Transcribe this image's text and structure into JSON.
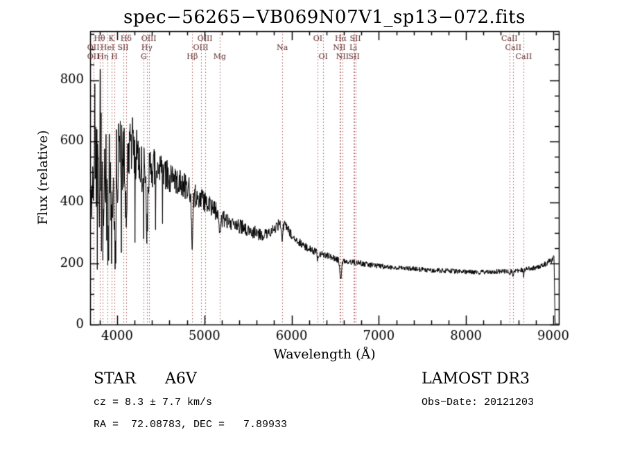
{
  "title": "spec−56265−VB069N07V1_sp13−072.fits",
  "axes": {
    "x_label": "Wavelength (Å)",
    "y_label": "Flux (relative)",
    "x_ticks": [
      4000,
      5000,
      6000,
      7000,
      8000,
      9000
    ],
    "y_ticks": [
      0,
      200,
      400,
      600,
      800
    ]
  },
  "annotations": {
    "class_label": "STAR      A6V",
    "cz": "cz = 8.3 ± 7.7 km/s",
    "radec": "RA =  72.08783, DEC =   7.89933",
    "survey": "LAMOST DR3",
    "obs_date": "Obs−Date: 20121203"
  },
  "colors": {
    "background": "#ffffff",
    "spectrum": "#000000",
    "axis": "#000000",
    "line_marker": "#a85454",
    "line_label": "#5f2727"
  },
  "chart_data": {
    "type": "line",
    "title": "spec−56265−VB069N07V1_sp13−072.fits",
    "xlabel": "Wavelength (Å)",
    "ylabel": "Flux (relative)",
    "xlim": [
      3690,
      9064
    ],
    "ylim": [
      0,
      960
    ],
    "x_ticks": [
      4000,
      5000,
      6000,
      7000,
      8000,
      9000
    ],
    "y_ticks": [
      0,
      200,
      400,
      600,
      800
    ],
    "x_minor_step": 200,
    "y_minor_step": 50,
    "grid": false,
    "noise_seed": 20121203,
    "spectral_lines": [
      {
        "label": "Hθ",
        "wavelength": 3798,
        "row": 1
      },
      {
        "label": "K",
        "wavelength": 3934,
        "row": 1
      },
      {
        "label": "Hδ",
        "wavelength": 4102,
        "row": 1
      },
      {
        "label": "OIII",
        "wavelength": 4363,
        "row": 1
      },
      {
        "label": "OIII",
        "wavelength": 5007,
        "row": 1
      },
      {
        "label": "OI",
        "wavelength": 6300,
        "row": 1
      },
      {
        "label": "Hα",
        "wavelength": 6563,
        "row": 1
      },
      {
        "label": "SII",
        "wavelength": 6731,
        "row": 1
      },
      {
        "label": "CaII",
        "wavelength": 8498,
        "row": 1
      },
      {
        "label": "OII",
        "wavelength": 3727,
        "row": 2
      },
      {
        "label": "HeI",
        "wavelength": 3889,
        "row": 2
      },
      {
        "label": "SII",
        "wavelength": 4068,
        "row": 2
      },
      {
        "label": "Hγ",
        "wavelength": 4340,
        "row": 2
      },
      {
        "label": "OIII",
        "wavelength": 4959,
        "row": 2
      },
      {
        "label": "Na",
        "wavelength": 5893,
        "row": 2
      },
      {
        "label": "NII",
        "wavelength": 6548,
        "row": 2
      },
      {
        "label": "Li",
        "wavelength": 6707,
        "row": 2
      },
      {
        "label": "CaII",
        "wavelength": 8542,
        "row": 2
      },
      {
        "label": "OII",
        "wavelength": 3727,
        "row": 3
      },
      {
        "label": "Hη",
        "wavelength": 3835,
        "row": 3
      },
      {
        "label": "H",
        "wavelength": 3968,
        "row": 3
      },
      {
        "label": "G",
        "wavelength": 4305,
        "row": 3
      },
      {
        "label": "Hβ",
        "wavelength": 4861,
        "row": 3
      },
      {
        "label": "Mg",
        "wavelength": 5175,
        "row": 3
      },
      {
        "label": "OI",
        "wavelength": 6363,
        "row": 3
      },
      {
        "label": "NII",
        "wavelength": 6583,
        "row": 3
      },
      {
        "label": "SII",
        "wavelength": 6716,
        "row": 3
      },
      {
        "label": "CaII",
        "wavelength": 8662,
        "row": 3
      }
    ],
    "continuum_points": [
      [
        3690,
        430
      ],
      [
        3720,
        500
      ],
      [
        3760,
        545
      ],
      [
        3800,
        560
      ],
      [
        3840,
        545
      ],
      [
        3880,
        530
      ],
      [
        3920,
        515
      ],
      [
        3960,
        505
      ],
      [
        4000,
        525
      ],
      [
        4060,
        555
      ],
      [
        4120,
        585
      ],
      [
        4160,
        600
      ],
      [
        4200,
        565
      ],
      [
        4260,
        525
      ],
      [
        4300,
        505
      ],
      [
        4360,
        505
      ],
      [
        4420,
        515
      ],
      [
        4480,
        505
      ],
      [
        4540,
        492
      ],
      [
        4600,
        482
      ],
      [
        4660,
        472
      ],
      [
        4720,
        465
      ],
      [
        4780,
        455
      ],
      [
        4840,
        438
      ],
      [
        4900,
        422
      ],
      [
        4960,
        410
      ],
      [
        5000,
        400
      ],
      [
        5060,
        390
      ],
      [
        5120,
        375
      ],
      [
        5160,
        362
      ],
      [
        5200,
        348
      ],
      [
        5260,
        340
      ],
      [
        5320,
        334
      ],
      [
        5380,
        326
      ],
      [
        5440,
        318
      ],
      [
        5500,
        310
      ],
      [
        5580,
        302
      ],
      [
        5660,
        292
      ],
      [
        5740,
        296
      ],
      [
        5800,
        312
      ],
      [
        5860,
        330
      ],
      [
        5900,
        334
      ],
      [
        5940,
        322
      ],
      [
        6000,
        296
      ],
      [
        6060,
        276
      ],
      [
        6120,
        260
      ],
      [
        6180,
        250
      ],
      [
        6240,
        243
      ],
      [
        6300,
        236
      ],
      [
        6360,
        230
      ],
      [
        6420,
        224
      ],
      [
        6480,
        218
      ],
      [
        6540,
        211
      ],
      [
        6600,
        206
      ],
      [
        6660,
        205
      ],
      [
        6720,
        204
      ],
      [
        6800,
        200
      ],
      [
        6900,
        195
      ],
      [
        7000,
        191
      ],
      [
        7100,
        188
      ],
      [
        7200,
        186
      ],
      [
        7300,
        184
      ],
      [
        7400,
        182
      ],
      [
        7500,
        180
      ],
      [
        7600,
        178
      ],
      [
        7700,
        176
      ],
      [
        7800,
        175
      ],
      [
        7900,
        174
      ],
      [
        8000,
        172
      ],
      [
        8100,
        171
      ],
      [
        8200,
        171
      ],
      [
        8300,
        172
      ],
      [
        8400,
        174
      ],
      [
        8500,
        175
      ],
      [
        8600,
        177
      ],
      [
        8700,
        181
      ],
      [
        8800,
        186
      ],
      [
        8900,
        196
      ],
      [
        8950,
        206
      ],
      [
        9000,
        214
      ],
      [
        9008,
        222
      ],
      [
        9014,
        150
      ],
      [
        9018,
        40
      ],
      [
        9022,
        2
      ],
      [
        9064,
        2
      ]
    ],
    "noise_envelope": [
      [
        3690,
        185
      ],
      [
        3750,
        175
      ],
      [
        3850,
        160
      ],
      [
        3950,
        150
      ],
      [
        4050,
        120
      ],
      [
        4150,
        100
      ],
      [
        4250,
        85
      ],
      [
        4350,
        70
      ],
      [
        4450,
        58
      ],
      [
        4550,
        52
      ],
      [
        4650,
        48
      ],
      [
        4750,
        45
      ],
      [
        4850,
        42
      ],
      [
        4950,
        38
      ],
      [
        5050,
        33
      ],
      [
        5150,
        30
      ],
      [
        5250,
        28
      ],
      [
        5350,
        26
      ],
      [
        5450,
        24
      ],
      [
        5550,
        22
      ],
      [
        5700,
        20
      ],
      [
        5900,
        18
      ],
      [
        6100,
        15
      ],
      [
        6300,
        13
      ],
      [
        6500,
        11
      ],
      [
        6700,
        10
      ],
      [
        7000,
        9
      ],
      [
        7400,
        8
      ],
      [
        7800,
        8
      ],
      [
        8200,
        8
      ],
      [
        8600,
        8
      ],
      [
        8900,
        9
      ],
      [
        9000,
        10
      ],
      [
        9012,
        6
      ],
      [
        9018,
        0
      ],
      [
        9064,
        0
      ]
    ],
    "absorption_features": [
      {
        "wavelength": 3798,
        "depth": 170,
        "width": 7
      },
      {
        "wavelength": 3835,
        "depth": 210,
        "width": 7
      },
      {
        "wavelength": 3889,
        "depth": 235,
        "width": 7
      },
      {
        "wavelength": 3934,
        "depth": 265,
        "width": 7
      },
      {
        "wavelength": 3970,
        "depth": 265,
        "width": 8
      },
      {
        "wavelength": 4102,
        "depth": 250,
        "width": 9
      },
      {
        "wavelength": 4340,
        "depth": 210,
        "width": 9
      },
      {
        "wavelength": 4861,
        "depth": 150,
        "width": 9
      },
      {
        "wavelength": 5175,
        "depth": 35,
        "width": 10
      },
      {
        "wavelength": 5893,
        "depth": 45,
        "width": 8
      },
      {
        "wavelength": 6300,
        "depth": 25,
        "width": 6
      },
      {
        "wavelength": 6563,
        "depth": 60,
        "width": 9
      },
      {
        "wavelength": 8498,
        "depth": 16,
        "width": 6
      },
      {
        "wavelength": 8542,
        "depth": 20,
        "width": 6
      },
      {
        "wavelength": 8662,
        "depth": 18,
        "width": 6
      }
    ],
    "forced_spikes": [
      [
        3743,
        788
      ],
      [
        3772,
        180
      ],
      [
        3806,
        835
      ],
      [
        3820,
        240
      ],
      [
        3902,
        210
      ],
      [
        3985,
        200
      ],
      [
        4048,
        235
      ],
      [
        4158,
        622
      ],
      [
        4205,
        268
      ],
      [
        4304,
        280
      ],
      [
        4440,
        310
      ],
      [
        4520,
        330
      ]
    ]
  }
}
